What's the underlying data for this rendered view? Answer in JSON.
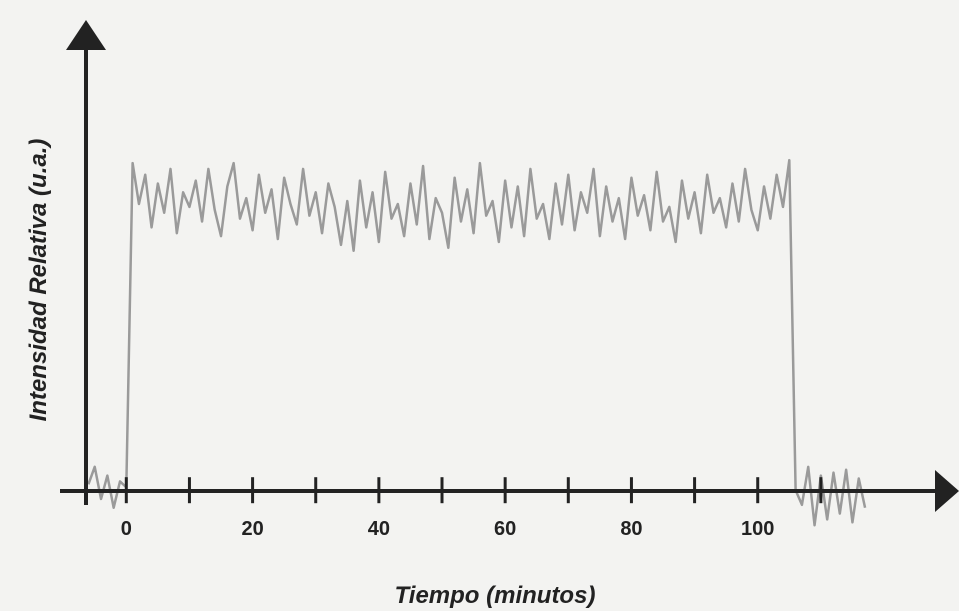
{
  "chart_data": {
    "type": "line",
    "x_label": "Tiempo (minutos)",
    "y_label": "Intensidad Relativa (u.a.)",
    "x": [
      -6,
      -5,
      -4,
      -3,
      -2,
      -1,
      0,
      1,
      2,
      3,
      4,
      5,
      6,
      7,
      8,
      9,
      10,
      11,
      12,
      13,
      14,
      15,
      16,
      17,
      18,
      19,
      20,
      21,
      22,
      23,
      24,
      25,
      26,
      27,
      28,
      29,
      30,
      31,
      32,
      33,
      34,
      35,
      36,
      37,
      38,
      39,
      40,
      41,
      42,
      43,
      44,
      45,
      46,
      47,
      48,
      49,
      50,
      51,
      52,
      53,
      54,
      55,
      56,
      57,
      58,
      59,
      60,
      61,
      62,
      63,
      64,
      65,
      66,
      67,
      68,
      69,
      70,
      71,
      72,
      73,
      74,
      75,
      76,
      77,
      78,
      79,
      80,
      81,
      82,
      83,
      84,
      85,
      86,
      87,
      88,
      89,
      90,
      91,
      92,
      93,
      94,
      95,
      96,
      97,
      98,
      99,
      100,
      101,
      102,
      103,
      104,
      105,
      106,
      107,
      108,
      109,
      110,
      111,
      112,
      113,
      114,
      115,
      116,
      117
    ],
    "values": [
      0.02,
      0.08,
      -0.03,
      0.05,
      -0.06,
      0.03,
      0.01,
      1.12,
      0.98,
      1.08,
      0.9,
      1.05,
      0.95,
      1.1,
      0.88,
      1.02,
      0.97,
      1.06,
      0.92,
      1.1,
      0.96,
      0.87,
      1.04,
      1.12,
      0.93,
      1.0,
      0.89,
      1.08,
      0.95,
      1.03,
      0.86,
      1.07,
      0.98,
      0.91,
      1.1,
      0.94,
      1.02,
      0.88,
      1.05,
      0.97,
      0.84,
      0.99,
      0.82,
      1.06,
      0.9,
      1.02,
      0.85,
      1.09,
      0.93,
      0.98,
      0.87,
      1.05,
      0.91,
      1.11,
      0.86,
      1.0,
      0.95,
      0.83,
      1.07,
      0.92,
      1.03,
      0.88,
      1.12,
      0.94,
      0.99,
      0.85,
      1.06,
      0.9,
      1.04,
      0.87,
      1.1,
      0.93,
      0.98,
      0.86,
      1.05,
      0.91,
      1.08,
      0.89,
      1.02,
      0.95,
      1.1,
      0.87,
      1.04,
      0.92,
      1.0,
      0.86,
      1.07,
      0.94,
      1.01,
      0.89,
      1.09,
      0.92,
      0.97,
      0.85,
      1.06,
      0.93,
      1.02,
      0.88,
      1.08,
      0.95,
      1.0,
      0.9,
      1.05,
      0.92,
      1.1,
      0.96,
      0.89,
      1.04,
      0.93,
      1.08,
      0.97,
      1.13,
      0.0,
      -0.05,
      0.08,
      -0.12,
      0.05,
      -0.1,
      0.06,
      -0.08,
      0.07,
      -0.11,
      0.04,
      -0.06
    ],
    "color": "#9a9a9a",
    "xlim": [
      -10.5,
      129.5
    ],
    "ylim": [
      -0.15,
      1.61
    ],
    "xticks": [
      0,
      20,
      40,
      60,
      80,
      100
    ],
    "xminorticks": [
      10,
      30,
      50,
      70,
      90,
      110
    ]
  }
}
